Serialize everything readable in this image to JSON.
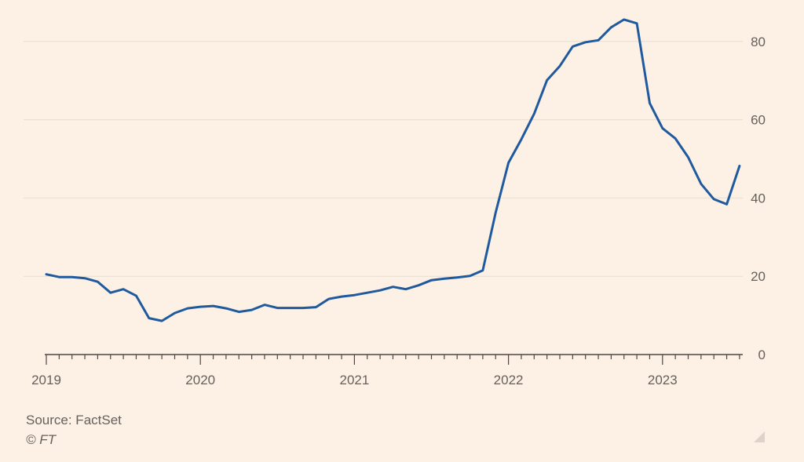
{
  "source": "Source: FactSet",
  "credit": "© FT",
  "colors": {
    "background": "#FDF1E5",
    "line": "#1F5A9E",
    "grid": "#E8DDD2",
    "axis": "#4D4845",
    "text": "#66605C"
  },
  "chart_data": {
    "type": "line",
    "title": "",
    "xlabel": "",
    "ylabel": "",
    "ylim": [
      0,
      90
    ],
    "yticks": [
      0,
      20,
      40,
      60,
      80
    ],
    "ytick_labels": [
      "0",
      "20",
      "40",
      "60",
      "80"
    ],
    "y_axis_side": "right",
    "grid": true,
    "xlim": [
      "2019-01",
      "2023-07"
    ],
    "xticks": [
      "2019",
      "2020",
      "2021",
      "2022",
      "2023"
    ],
    "x_minor_ticks": "monthly",
    "series": [
      {
        "color": "#1F5A9E",
        "x": [
          "2019-01",
          "2019-02",
          "2019-03",
          "2019-04",
          "2019-05",
          "2019-06",
          "2019-07",
          "2019-08",
          "2019-09",
          "2019-10",
          "2019-11",
          "2019-12",
          "2020-01",
          "2020-02",
          "2020-03",
          "2020-04",
          "2020-05",
          "2020-06",
          "2020-07",
          "2020-08",
          "2020-09",
          "2020-10",
          "2020-11",
          "2020-12",
          "2021-01",
          "2021-02",
          "2021-03",
          "2021-04",
          "2021-05",
          "2021-06",
          "2021-07",
          "2021-08",
          "2021-09",
          "2021-10",
          "2021-11",
          "2021-12",
          "2022-01",
          "2022-02",
          "2022-03",
          "2022-04",
          "2022-05",
          "2022-06",
          "2022-07",
          "2022-08",
          "2022-09",
          "2022-10",
          "2022-11",
          "2022-12",
          "2023-01",
          "2023-02",
          "2023-03",
          "2023-04",
          "2023-05",
          "2023-06",
          "2023-07"
        ],
        "values": [
          20.5,
          19.8,
          19.8,
          19.5,
          18.6,
          15.8,
          16.7,
          15.0,
          9.3,
          8.6,
          10.6,
          11.8,
          12.2,
          12.4,
          11.8,
          10.9,
          11.4,
          12.7,
          11.9,
          11.9,
          11.9,
          12.1,
          14.2,
          14.8,
          15.2,
          15.8,
          16.4,
          17.3,
          16.7,
          17.7,
          19.0,
          19.4,
          19.7,
          20.1,
          21.5,
          36.3,
          49.0,
          55.0,
          61.5,
          70.1,
          73.7,
          78.7,
          79.8,
          80.3,
          83.6,
          85.6,
          84.6,
          64.2,
          57.8,
          55.2,
          50.4,
          43.6,
          39.7,
          38.4,
          48.2
        ]
      }
    ]
  }
}
